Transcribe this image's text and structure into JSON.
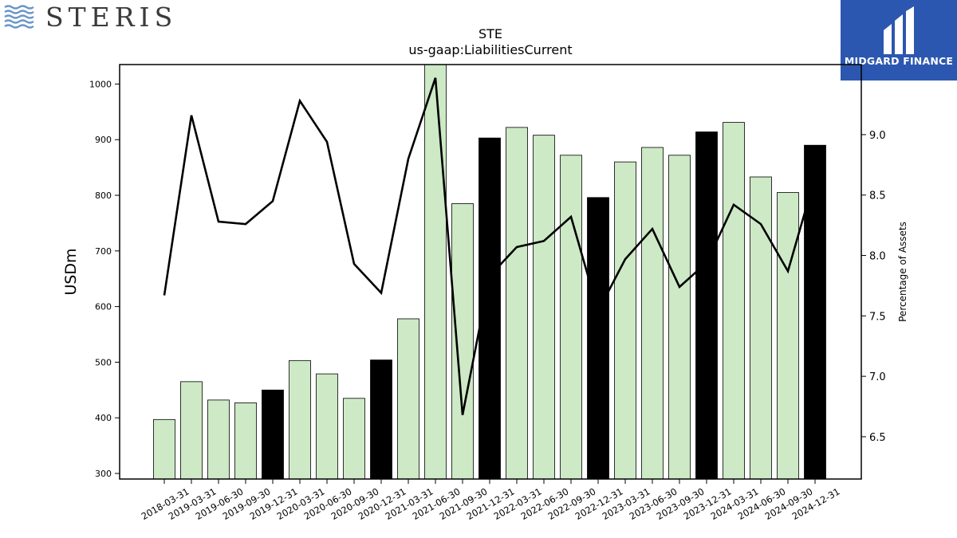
{
  "branding": {
    "left_logo_text": "STERIS",
    "right_logo_text": "MIDGARD FINANCE",
    "right_logo_bg": "#2c57b0"
  },
  "chart_data": {
    "type": "bar",
    "title": "STE",
    "subtitle": "us-gaap:LiabilitiesCurrent",
    "ylabel": "USDm",
    "y2label": "Percentage of Assets",
    "ylim": [
      290,
      1035
    ],
    "y2lim": [
      6.15,
      9.58
    ],
    "yticks": [
      "300",
      "400",
      "500",
      "600",
      "700",
      "800",
      "900",
      "1000"
    ],
    "y2ticks": [
      "6.5",
      "7.0",
      "7.5",
      "8.0",
      "8.5",
      "9.0"
    ],
    "categories": [
      "2018-03-31",
      "2019-03-31",
      "2019-06-30",
      "2019-09-30",
      "2019-12-31",
      "2020-03-31",
      "2020-06-30",
      "2020-09-30",
      "2020-12-31",
      "2021-03-31",
      "2021-06-30",
      "2021-09-30",
      "2021-12-31",
      "2022-03-31",
      "2022-06-30",
      "2022-09-30",
      "2022-12-31",
      "2023-03-31",
      "2023-06-30",
      "2023-09-30",
      "2023-12-31",
      "2024-03-31",
      "2024-06-30",
      "2024-09-30",
      "2024-12-31"
    ],
    "series": [
      {
        "kind": "bar",
        "values": [
          397,
          465,
          432,
          427,
          450,
          503,
          479,
          435,
          504,
          578,
          1040,
          785,
          903,
          922,
          908,
          872,
          796,
          860,
          886,
          872,
          914,
          931,
          833,
          805,
          890
        ],
        "highlight": [
          false,
          false,
          false,
          false,
          true,
          false,
          false,
          false,
          true,
          false,
          false,
          false,
          true,
          false,
          false,
          false,
          true,
          false,
          false,
          false,
          true,
          false,
          false,
          false,
          true
        ],
        "color": "#cde9c6",
        "highlight_color": "#000000"
      },
      {
        "kind": "line",
        "axis": "right",
        "values": [
          7.67,
          9.16,
          8.28,
          8.26,
          8.45,
          9.28,
          8.94,
          7.93,
          7.69,
          8.8,
          9.47,
          6.68,
          7.83,
          8.07,
          8.12,
          8.32,
          7.54,
          7.97,
          8.22,
          7.74,
          7.94,
          8.42,
          8.26,
          7.87,
          8.65
        ],
        "color": "#000000"
      }
    ],
    "grid": false,
    "legend": "none"
  }
}
